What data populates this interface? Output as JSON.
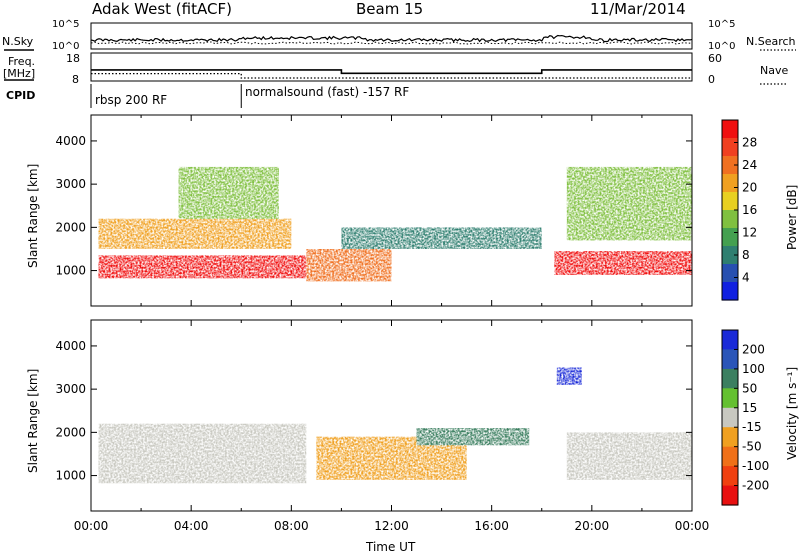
{
  "header": {
    "station": "Adak West (fitACF)",
    "beam": "Beam 15",
    "date": "11/Mar/2014"
  },
  "status_panel": {
    "nsky_label": "N.Sky",
    "nsearch_label": "N.Search",
    "freq_label_top": "Freq.",
    "freq_label_unit": "[MHz]",
    "nave_label": "Nave",
    "cpid_label": "CPID",
    "left_ticks": [
      "10^5",
      "10^0",
      "18",
      "8"
    ],
    "right_ticks": [
      "10^5",
      "10^0",
      "60",
      "0"
    ],
    "cpid_modes": [
      {
        "label": "rbsp 200 RF",
        "start_hour": 0
      },
      {
        "label": "normalsound (fast) -157 RF",
        "start_hour": 6
      }
    ],
    "freq_mhz": [
      {
        "start_hour": 0,
        "end_hour": 10,
        "value": 12.2
      },
      {
        "start_hour": 10,
        "end_hour": 18,
        "value": 10.8
      },
      {
        "start_hour": 18,
        "end_hour": 24,
        "value": 12.2
      }
    ],
    "nave": [
      {
        "start_hour": 0,
        "end_hour": 6,
        "value": 16
      },
      {
        "start_hour": 6,
        "end_hour": 24,
        "value": 5
      }
    ]
  },
  "chart_data": [
    {
      "type": "heatmap",
      "panel": "power",
      "ylabel": "Slant Range [km]",
      "yticks": [
        1000,
        2000,
        3000,
        4000
      ],
      "ylim": [
        180,
        4600
      ],
      "xlim": [
        0,
        24
      ],
      "colorbar": {
        "label": "Power [dB]",
        "ticks": [
          4,
          8,
          12,
          16,
          20,
          24,
          28
        ],
        "colors": [
          "#1020e0",
          "#2850b0",
          "#2f7f70",
          "#44a050",
          "#80c040",
          "#e8d020",
          "#f0a020",
          "#f07020",
          "#f04020",
          "#f01010"
        ]
      },
      "regions": [
        {
          "x": [
            0.3,
            8.6
          ],
          "y": [
            820,
            1350
          ],
          "value": 29
        },
        {
          "x": [
            0.3,
            8.0
          ],
          "y": [
            1500,
            2200
          ],
          "value": 20
        },
        {
          "x": [
            3.5,
            7.5
          ],
          "y": [
            2200,
            3400
          ],
          "value": 14
        },
        {
          "x": [
            8.6,
            12.0
          ],
          "y": [
            750,
            1500
          ],
          "value": 24
        },
        {
          "x": [
            10.0,
            18.0
          ],
          "y": [
            1500,
            2000
          ],
          "value": 10
        },
        {
          "x": [
            18.5,
            24.0
          ],
          "y": [
            900,
            1450
          ],
          "value": 30
        },
        {
          "x": [
            19.0,
            24.0
          ],
          "y": [
            1700,
            3400
          ],
          "value": 14
        }
      ]
    },
    {
      "type": "heatmap",
      "panel": "velocity",
      "xlabel": "Time UT",
      "ylabel": "Slant Range [km]",
      "yticks": [
        1000,
        2000,
        3000,
        4000
      ],
      "ylim": [
        180,
        4600
      ],
      "xlim": [
        0,
        24
      ],
      "xticks": [
        "00:00",
        "04:00",
        "08:00",
        "12:00",
        "16:00",
        "20:00",
        "00:00"
      ],
      "colorbar": {
        "label": "Velocity [m s⁻¹]",
        "ticks": [
          "200",
          "100",
          "50",
          "15",
          "-15",
          "-50",
          "-100",
          "-200"
        ],
        "colors": [
          "#1a2ad8",
          "#2a55b8",
          "#3b7f60",
          "#64c030",
          "#c8c8c0",
          "#f0a020",
          "#f07018",
          "#f04010",
          "#e81010"
        ]
      },
      "regions": [
        {
          "x": [
            0.3,
            8.6
          ],
          "y": [
            820,
            2200
          ],
          "value": 0
        },
        {
          "x": [
            9.0,
            15.0
          ],
          "y": [
            900,
            1900
          ],
          "value": -40
        },
        {
          "x": [
            13.0,
            17.5
          ],
          "y": [
            1700,
            2100
          ],
          "value": 30
        },
        {
          "x": [
            18.6,
            19.6
          ],
          "y": [
            3100,
            3500
          ],
          "value": 200
        },
        {
          "x": [
            19.0,
            24.0
          ],
          "y": [
            900,
            2000
          ],
          "value": 0
        }
      ]
    }
  ]
}
